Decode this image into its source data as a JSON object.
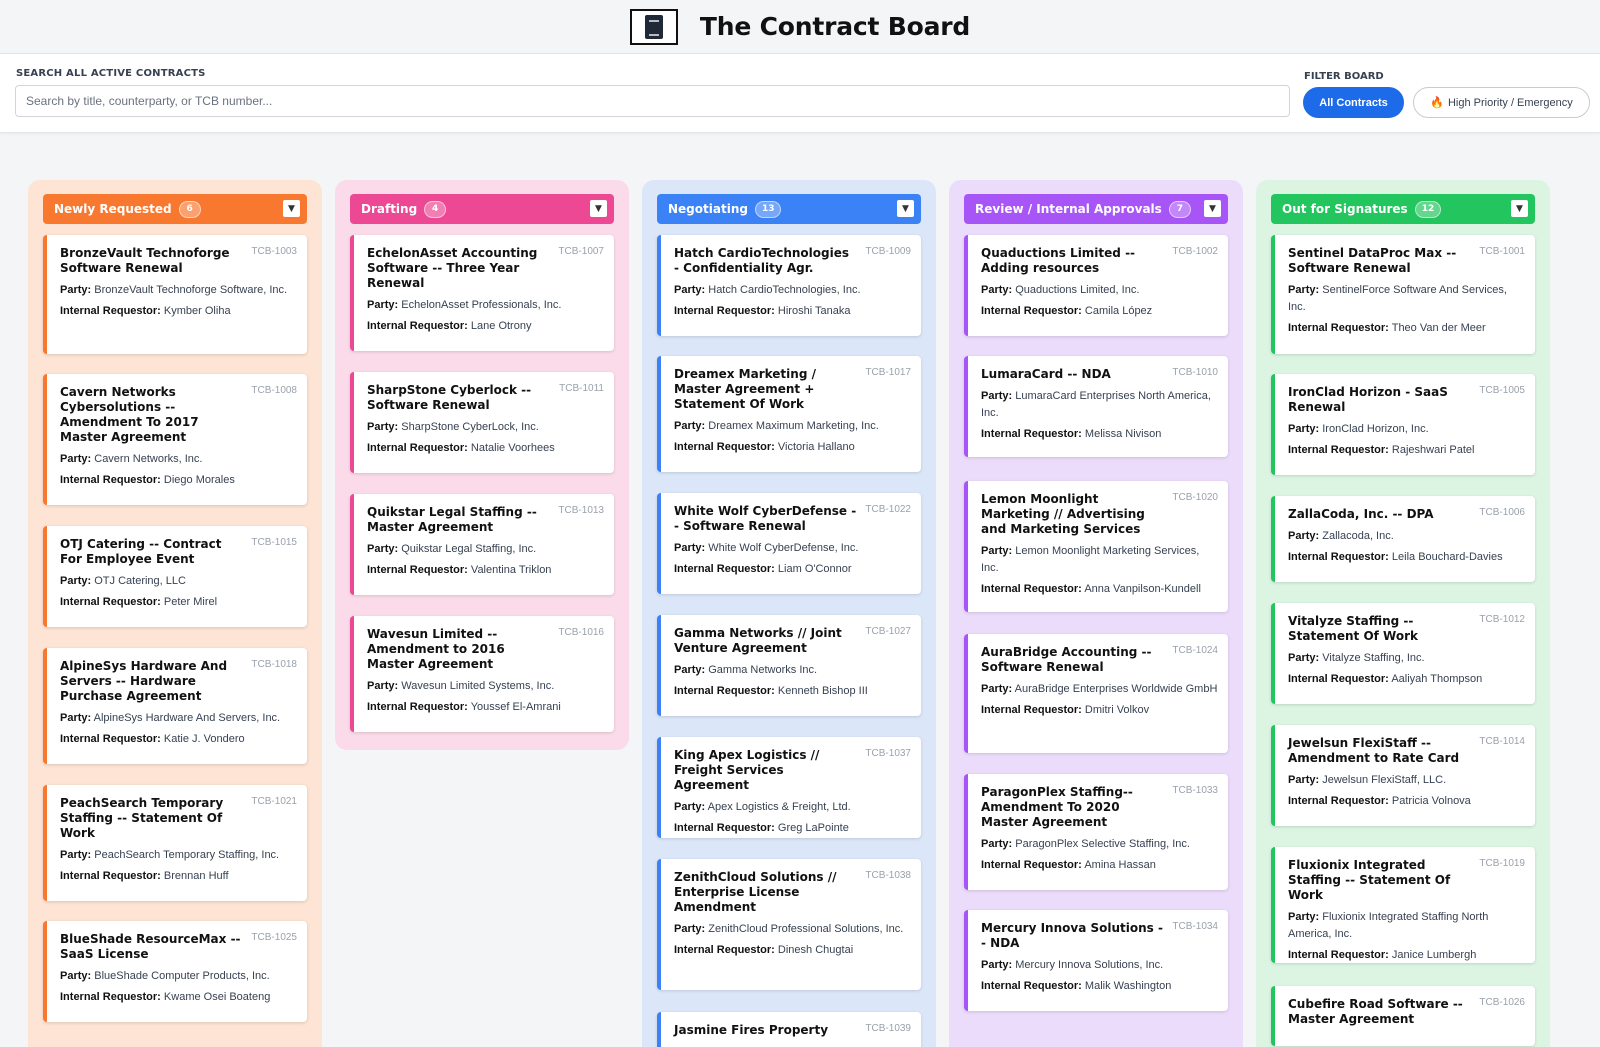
{
  "app": {
    "title": "The Contract Board",
    "logo_icon": "contract-document-icon"
  },
  "search": {
    "label": "SEARCH ALL ACTIVE CONTRACTS",
    "placeholder": "Search by title, counterparty, or TCB number...",
    "value": ""
  },
  "filter": {
    "label": "FILTER BOARD",
    "all_label": "All Contracts",
    "high_label": "High Priority / Emergency",
    "high_icon": "🔥",
    "active": "All Contracts",
    "accent": "#1d6be8"
  },
  "labels": {
    "party": "Party:",
    "requestor": "Internal Requestor:"
  },
  "columns": [
    {
      "title": "Newly Requested",
      "count": "6",
      "color": "#f97830",
      "bg": "#fde4d4",
      "toggle": "▼",
      "cards": [
        {
          "title": "BronzeVault Technoforge Software Renewal",
          "id": "TCB-1003",
          "party": "BronzeVault Technoforge Software, Inc.",
          "requestor": "Kymber Oliha"
        },
        {
          "title": "Cavern Networks Cybersolutions -- Amendment To 2017 Master Agreement",
          "id": "TCB-1008",
          "party": "Cavern Networks, Inc.",
          "requestor": "Diego Morales"
        },
        {
          "title": "OTJ Catering -- Contract For Employee Event",
          "id": "TCB-1015",
          "party": "OTJ Catering, LLC",
          "requestor": "Peter Mirel"
        },
        {
          "title": "AlpineSys Hardware And Servers -- Hardware Purchase Agreement",
          "id": "TCB-1018",
          "party": "AlpineSys Hardware And Servers, Inc.",
          "requestor": "Katie J. Vondero"
        },
        {
          "title": "PeachSearch Temporary Staffing -- Statement Of Work",
          "id": "TCB-1021",
          "party": "PeachSearch Temporary Staffing, Inc.",
          "requestor": "Brennan Huff"
        },
        {
          "title": "BlueShade ResourceMax -- SaaS License",
          "id": "TCB-1025",
          "party": "BlueShade Computer Products, Inc.",
          "requestor": "Kwame Osei Boateng"
        }
      ]
    },
    {
      "title": "Drafting",
      "count": "4",
      "color": "#ec4894",
      "bg": "#fbdbe9",
      "toggle": "▼",
      "cards": [
        {
          "title": "EchelonAsset Accounting Software -- Three Year Renewal",
          "id": "TCB-1007",
          "party": "EchelonAsset Professionals, Inc.",
          "requestor": "Lane Otrony"
        },
        {
          "title": "SharpStone Cyberlock -- Software Renewal",
          "id": "TCB-1011",
          "party": "SharpStone CyberLock, Inc.",
          "requestor": "Natalie Voorhees"
        },
        {
          "title": "Quikstar Legal Staffing -- Master Agreement",
          "id": "TCB-1013",
          "party": "Quikstar Legal Staffing, Inc.",
          "requestor": "Valentina Triklon"
        },
        {
          "title": "Wavesun Limited -- Amendment to 2016 Master Agreement",
          "id": "TCB-1016",
          "party": "Wavesun Limited Systems, Inc.",
          "requestor": "Youssef El-Amrani"
        }
      ]
    },
    {
      "title": "Negotiating",
      "count": "13",
      "color": "#3b82f6",
      "bg": "#dbe7f9",
      "toggle": "▼",
      "cards": [
        {
          "title": "Hatch CardioTechnologies - Confidentiality Agr.",
          "id": "TCB-1009",
          "party": "Hatch CardioTechnologies, Inc.",
          "requestor": "Hiroshi Tanaka"
        },
        {
          "title": "Dreamex Marketing / Master Agreement + Statement Of Work",
          "id": "TCB-1017",
          "party": "Dreamex Maximum Marketing, Inc.",
          "requestor": "Victoria Hallano"
        },
        {
          "title": "White Wolf CyberDefense -- Software Renewal",
          "id": "TCB-1022",
          "party": "White Wolf CyberDefense, Inc.",
          "requestor": "Liam O'Connor"
        },
        {
          "title": "Gamma Networks // Joint Venture Agreement",
          "id": "TCB-1027",
          "party": "Gamma Networks Inc.",
          "requestor": "Kenneth Bishop III"
        },
        {
          "title": "King Apex Logistics // Freight Services Agreement",
          "id": "TCB-1037",
          "party": "Apex Logistics & Freight, Ltd.",
          "requestor": "Greg LaPointe"
        },
        {
          "title": "ZenithCloud Solutions // Enterprise License Amendment",
          "id": "TCB-1038",
          "party": "ZenithCloud Professional Solutions, Inc.",
          "requestor": "Dinesh Chugtai"
        },
        {
          "title": "Jasmine Fires Property",
          "id": "TCB-1039",
          "party": "",
          "requestor": ""
        }
      ]
    },
    {
      "title": "Review / Internal Approvals",
      "count": "7",
      "color": "#a855f7",
      "bg": "#ecdcfb",
      "toggle": "▼",
      "cards": [
        {
          "title": "Quaductions Limited -- Adding resources",
          "id": "TCB-1002",
          "party": "Quaductions Limited, Inc.",
          "requestor": "Camila López"
        },
        {
          "title": "LumaraCard -- NDA",
          "id": "TCB-1010",
          "party": "LumaraCard Enterprises North America, Inc.",
          "requestor": "Melissa Nivison"
        },
        {
          "title": "Lemon Moonlight Marketing // Advertising and Marketing Services",
          "id": "TCB-1020",
          "party": "Lemon Moonlight Marketing Services, Inc.",
          "requestor": "Anna Vanpilson-Kundell"
        },
        {
          "title": "AuraBridge Accounting -- Software Renewal",
          "id": "TCB-1024",
          "party": "AuraBridge Enterprises Worldwide GmbH",
          "requestor": "Dmitri Volkov"
        },
        {
          "title": "ParagonPlex Staffing-- Amendment To 2020 Master Agreement",
          "id": "TCB-1033",
          "party": "ParagonPlex Selective Staffing, Inc.",
          "requestor": "Amina Hassan"
        },
        {
          "title": "Mercury Innova Solutions -- NDA",
          "id": "TCB-1034",
          "party": "Mercury Innova Solutions, Inc.",
          "requestor": "Malik Washington"
        }
      ]
    },
    {
      "title": "Out for Signatures",
      "count": "12",
      "color": "#22c55e",
      "bg": "#dcf5e3",
      "toggle": "▼",
      "cards": [
        {
          "title": "Sentinel DataProc Max -- Software Renewal",
          "id": "TCB-1001",
          "party": "SentinelForce Software And Services, Inc.",
          "requestor": "Theo Van der Meer"
        },
        {
          "title": "IronClad Horizon - SaaS Renewal",
          "id": "TCB-1005",
          "party": "IronClad Horizon, Inc.",
          "requestor": "Rajeshwari Patel"
        },
        {
          "title": "ZallaCoda, Inc. -- DPA",
          "id": "TCB-1006",
          "party": "Zallacoda, Inc.",
          "requestor": "Leila Bouchard-Davies"
        },
        {
          "title": "Vitalyze Staffing -- Statement Of Work",
          "id": "TCB-1012",
          "party": "Vitalyze Staffing, Inc.",
          "requestor": "Aaliyah Thompson"
        },
        {
          "title": "Jewelsun FlexiStaff -- Amendment to Rate Card",
          "id": "TCB-1014",
          "party": "Jewelsun FlexiStaff, LLC.",
          "requestor": "Patricia Volnova"
        },
        {
          "title": "Fluxionix Integrated Staffing -- Statement Of Work",
          "id": "TCB-1019",
          "party": "Fluxionix Integrated Staffing North America, Inc.",
          "requestor": "Janice Lumbergh"
        },
        {
          "title": "Cubefire Road Software -- Master Agreement",
          "id": "TCB-1026",
          "party": "",
          "requestor": ""
        }
      ]
    }
  ]
}
